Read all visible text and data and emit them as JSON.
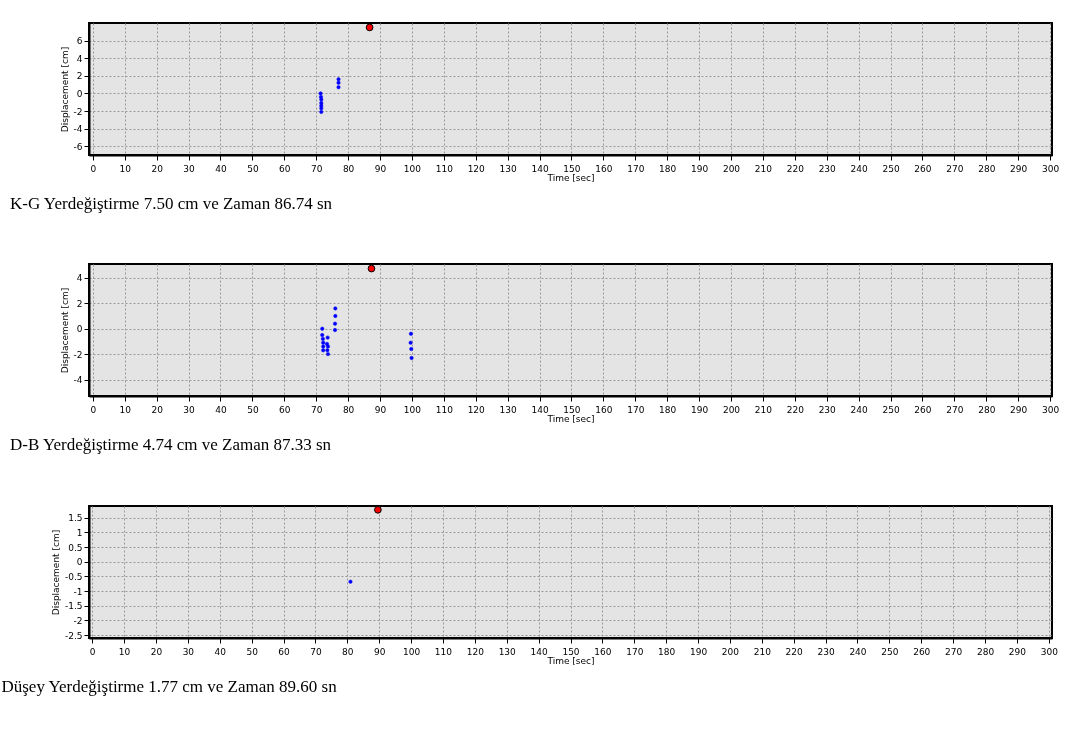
{
  "chart_data": [
    {
      "type": "scatter",
      "xlabel": "Time [sec]",
      "ylabel": "Displacement [cm]",
      "annotations": [
        "K-G Yerdeğiştirme 7.50 cm ve Zaman 86.74 sn"
      ],
      "xlim": [
        -1.2,
        300.6
      ],
      "ylim": [
        -7,
        8
      ],
      "xticks": [
        0,
        10,
        20,
        30,
        40,
        50,
        60,
        70,
        80,
        90,
        100,
        110,
        120,
        130,
        140,
        150,
        160,
        170,
        180,
        190,
        200,
        210,
        220,
        230,
        240,
        250,
        260,
        270,
        280,
        290,
        300
      ],
      "yticks": [
        -6,
        -4,
        -2,
        0,
        2,
        4,
        6
      ],
      "grid": true,
      "marker": "circle",
      "series": [
        {
          "color": "#0000ff",
          "x": [
            71.4,
            71.5,
            71.6,
            71.6,
            71.6,
            71.6,
            71.6,
            77,
            77,
            77
          ],
          "values": [
            0,
            -0.4,
            -0.7,
            -1.1,
            -1.4,
            -1.7,
            -2.1,
            0.7,
            1.2,
            1.6
          ]
        },
        {
          "color": "#ff0000",
          "x": [
            86.74
          ],
          "values": [
            7.5
          ]
        }
      ]
    },
    {
      "type": "scatter",
      "xlabel": "Time [sec]",
      "ylabel": "Displacement [cm]",
      "annotations": [
        "D-B Yerdeğiştirme 4.74 cm ve Zaman 87.33 sn"
      ],
      "xlim": [
        -1.2,
        300.6
      ],
      "ylim": [
        -5.3,
        5.1
      ],
      "xticks": [
        0,
        10,
        20,
        30,
        40,
        50,
        60,
        70,
        80,
        90,
        100,
        110,
        120,
        130,
        140,
        150,
        160,
        170,
        180,
        190,
        200,
        210,
        220,
        230,
        240,
        250,
        260,
        270,
        280,
        290,
        300
      ],
      "yticks": [
        -4,
        -2,
        0,
        2,
        4
      ],
      "grid": true,
      "marker": "circle",
      "series": [
        {
          "color": "#0000ff",
          "x": [
            71.9,
            71.9,
            72.1,
            72.2,
            72.2,
            72.2,
            73.6,
            73.4,
            73.7,
            73.5,
            73.7,
            76,
            76,
            75.9,
            75.9,
            99.7,
            99.6,
            99.8,
            99.9
          ],
          "values": [
            0,
            -0.5,
            -0.8,
            -1.1,
            -1.4,
            -1.7,
            -0.7,
            -1.2,
            -1.4,
            -1.7,
            -2,
            1.6,
            1,
            0.4,
            -0.1,
            -0.4,
            -1.1,
            -1.6,
            -2.3
          ]
        },
        {
          "color": "#ff0000",
          "x": [
            87.33
          ],
          "values": [
            4.74
          ]
        }
      ]
    },
    {
      "type": "scatter",
      "xlabel": "Time [sec]",
      "ylabel": "Displacement [cm]",
      "annotations": [
        "Düşey Yerdeğiştirme 1.77 cm ve Zaman 89.60 sn"
      ],
      "xlim": [
        -1,
        301
      ],
      "ylim": [
        -2.6,
        1.9
      ],
      "xticks": [
        0,
        10,
        20,
        30,
        40,
        50,
        60,
        70,
        80,
        90,
        100,
        110,
        120,
        130,
        140,
        150,
        160,
        170,
        180,
        190,
        200,
        210,
        220,
        230,
        240,
        250,
        260,
        270,
        280,
        290,
        300
      ],
      "yticks": [
        -2.5,
        -2,
        -1.5,
        -1,
        -0.5,
        0,
        0.5,
        1,
        1.5
      ],
      "grid": true,
      "marker": "circle",
      "series": [
        {
          "color": "#0000ff",
          "x": [
            81
          ],
          "values": [
            -0.68
          ]
        },
        {
          "color": "#ff0000",
          "x": [
            89.6
          ],
          "values": [
            1.77
          ]
        }
      ]
    }
  ]
}
